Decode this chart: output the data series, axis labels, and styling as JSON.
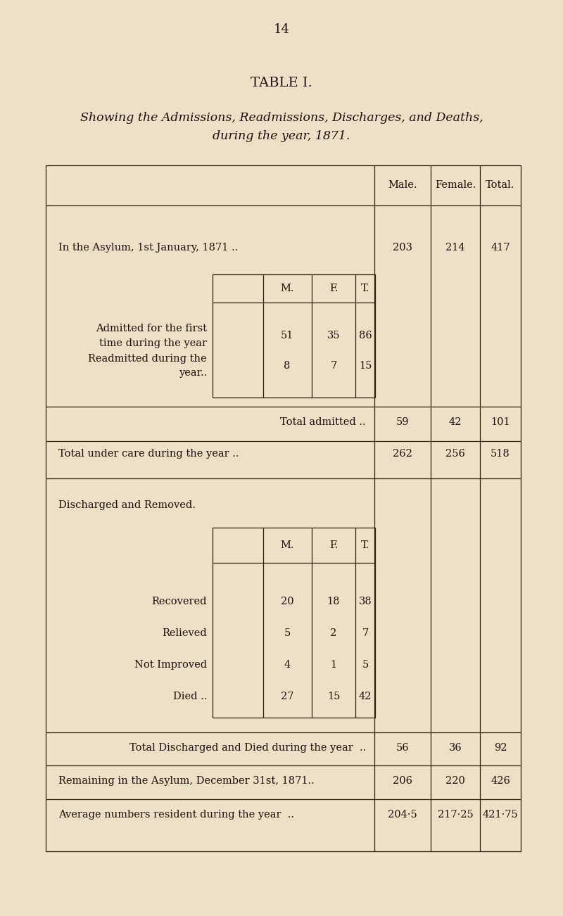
{
  "page_number": "14",
  "title": "TABLE I.",
  "subtitle_line1": "Showing the Admissions, Readmissions, Discharges, and Deaths,",
  "subtitle_line2": "during the year, 1871.",
  "bg_color": "#ede0c8",
  "text_color": "#1c1008",
  "line_color": "#2a1f0a",
  "page_num_fontsize": 13,
  "title_fontsize": 14,
  "subtitle_fontsize": 12.5,
  "body_fontsize": 10.5,
  "col_headers": [
    "Male.",
    "Female.",
    "Total."
  ],
  "row_asylum_jan": {
    "label": "In the Asylum, 1st January, 1871 ..",
    "values": [
      "203",
      "214",
      "417"
    ]
  },
  "row_admitted_first_line1": "Admitted for the first",
  "row_admitted_first_line2": "time during the year",
  "row_admitted_values": [
    "51",
    "35",
    "86"
  ],
  "row_readmitted_line1": "Readmitted during the",
  "row_readmitted_line2": "year..",
  "row_readmitted_values": [
    "8",
    "7",
    "15"
  ],
  "row_total_admitted": {
    "label": "Total admitted ..",
    "values": [
      "59",
      "42",
      "101"
    ]
  },
  "row_total_care": {
    "label": "Total under care during the year ..",
    "values": [
      "262",
      "256",
      "518"
    ]
  },
  "section_discharged": "Discharged and Removed.",
  "discharged_rows": [
    {
      "label": "Recovered",
      "values": [
        "20",
        "18",
        "38"
      ]
    },
    {
      "label": "Relieved",
      "values": [
        "5",
        "2",
        "7"
      ]
    },
    {
      "label": "Not Improved",
      "values": [
        "4",
        "1",
        "5"
      ]
    },
    {
      "label": "Died ..",
      "values": [
        "27",
        "15",
        "42"
      ]
    }
  ],
  "row_total_discharged": {
    "label": "Total Discharged and Died during the year  ..",
    "values": [
      "56",
      "36",
      "92"
    ]
  },
  "row_remaining": {
    "label": "Remaining in the Asylum, December 31st, 1871..",
    "values": [
      "206",
      "220",
      "426"
    ]
  },
  "row_average": {
    "label": "Average numbers resident during the year  ..",
    "values": [
      "204·5",
      "217·25",
      "421·75"
    ]
  }
}
